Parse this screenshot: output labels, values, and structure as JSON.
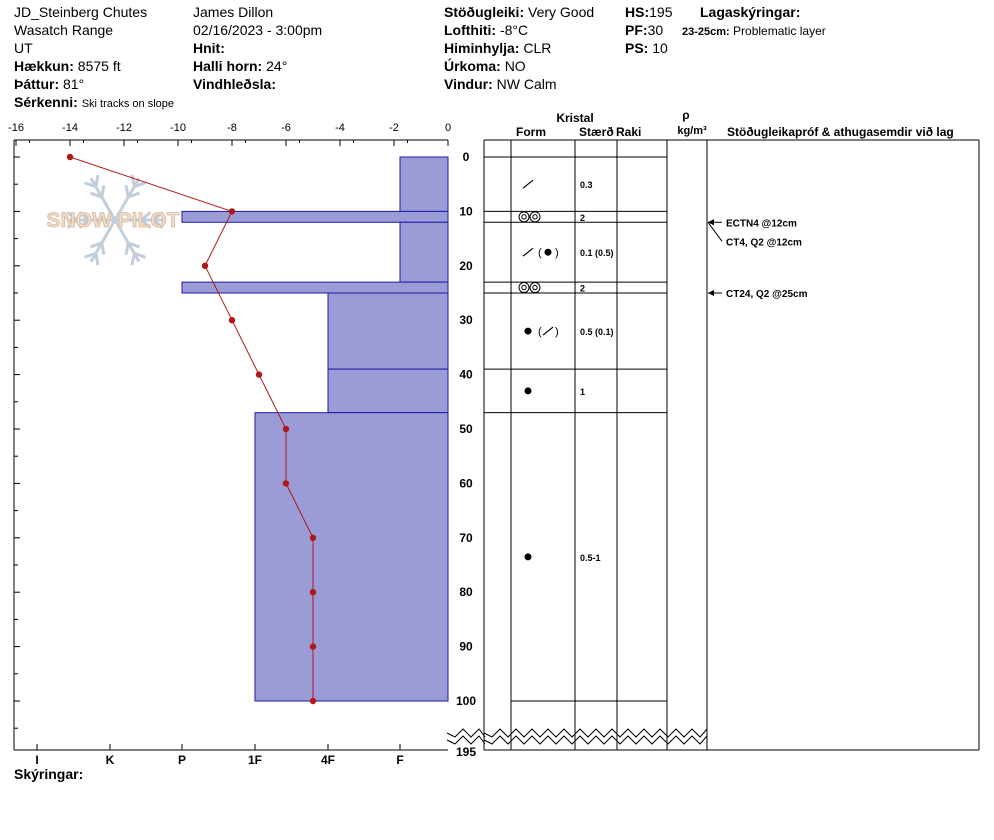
{
  "header": {
    "location": "JD_Steinberg Chutes",
    "range": "Wasatch Range",
    "state": "UT",
    "elevation_label": "Hækkun:",
    "elevation": "8575 ft",
    "aspect_label": "Þáttur:",
    "aspect": "81°",
    "features_label": "Sérkenni:",
    "features": "Ski tracks on slope",
    "observer": "James Dillon",
    "datetime": "02/16/2023 - 3:00pm",
    "coords_label": "Hnit:",
    "coords": "",
    "slope_label": "Halli horn:",
    "slope": "24°",
    "wind_loading_label": "Vindhleðsla:",
    "wind_loading": "",
    "stability_label": "Stöðugleiki:",
    "stability": "Very Good",
    "air_temp_label": "Lofthiti:",
    "air_temp": "-8°C",
    "sky_label": "Himinhylja:",
    "sky": "CLR",
    "precip_label": "Úrkoma:",
    "precip": "NO",
    "wind_label": "Vindur:",
    "wind": "NW Calm",
    "hs_label": "HS:",
    "hs": "195",
    "pf_label": "PF:",
    "pf": "30",
    "ps_label": "PS:",
    "ps": "10",
    "layer_notes_label": "Lagaskýringar:",
    "layer_note_depth": "23-25cm:",
    "layer_note_text": "Problematic layer"
  },
  "footer": {
    "notes_label": "Skýringar:"
  },
  "watermark": "SNOW PILOT",
  "columns": {
    "crystal": "Kristal",
    "form": "Form",
    "size": "Stærð",
    "moisture": "Raki",
    "density_symbol": "ρ",
    "density_unit": "kg/m³",
    "tests": "Stöðugleikapróf & athugasemdir við lag"
  },
  "chart_data": {
    "type": "line",
    "x_ticks": [
      "-16",
      "-14",
      "-12",
      "-10",
      "-8",
      "-6",
      "-4",
      "-2",
      "0"
    ],
    "xlim": [
      -16,
      0
    ],
    "depth_ticks": [
      "0",
      "10",
      "20",
      "30",
      "40",
      "50",
      "60",
      "70",
      "80",
      "90",
      "100"
    ],
    "depth_bottom_label": "195",
    "hardness_ticks": [
      "I",
      "K",
      "P",
      "1F",
      "4F",
      "F"
    ],
    "temperature_profile": {
      "depth": [
        0,
        10,
        20,
        30,
        40,
        50,
        60,
        70,
        80,
        90,
        100
      ],
      "temp": [
        -14,
        -8,
        -9,
        -8,
        -7,
        -6,
        -6,
        -5,
        -5,
        -5,
        -5
      ]
    },
    "hardness_layers": [
      {
        "top": 0,
        "bottom": 10,
        "hardness": "4F+"
      },
      {
        "top": 10,
        "bottom": 12,
        "hardness": "P+"
      },
      {
        "top": 12,
        "bottom": 23,
        "hardness": "4F+"
      },
      {
        "top": 23,
        "bottom": 25,
        "hardness": "P+"
      },
      {
        "top": 25,
        "bottom": 39,
        "hardness": "1F+"
      },
      {
        "top": 39,
        "bottom": 47,
        "hardness": "1F+"
      },
      {
        "top": 47,
        "bottom": 100,
        "hardness": "1F-"
      }
    ],
    "grain_layers": [
      {
        "top": 0,
        "bottom": 10,
        "form": [
          "decomposing"
        ],
        "size": "0.3"
      },
      {
        "top": 10,
        "bottom": 12,
        "form": [
          "surface hoar",
          "surface hoar"
        ],
        "size": "2"
      },
      {
        "top": 12,
        "bottom": 23,
        "form": [
          "decomposing",
          "rounded"
        ],
        "size": "0.1 (0.5)"
      },
      {
        "top": 23,
        "bottom": 25,
        "form": [
          "surface hoar",
          "surface hoar"
        ],
        "size": "2"
      },
      {
        "top": 25,
        "bottom": 39,
        "form": [
          "rounded",
          "decomposing"
        ],
        "size": "0.5 (0.1)"
      },
      {
        "top": 39,
        "bottom": 47,
        "form": [
          "rounded"
        ],
        "size": "1"
      },
      {
        "top": 47,
        "bottom": 100,
        "form": [
          "rounded"
        ],
        "size": "0.5-1"
      }
    ],
    "stability_tests": [
      {
        "depth": 12,
        "label": "ECTN4 @12cm"
      },
      {
        "depth": 12,
        "label": "CT4, Q2 @12cm"
      },
      {
        "depth": 25,
        "label": "CT24, Q2 @25cm"
      }
    ]
  }
}
